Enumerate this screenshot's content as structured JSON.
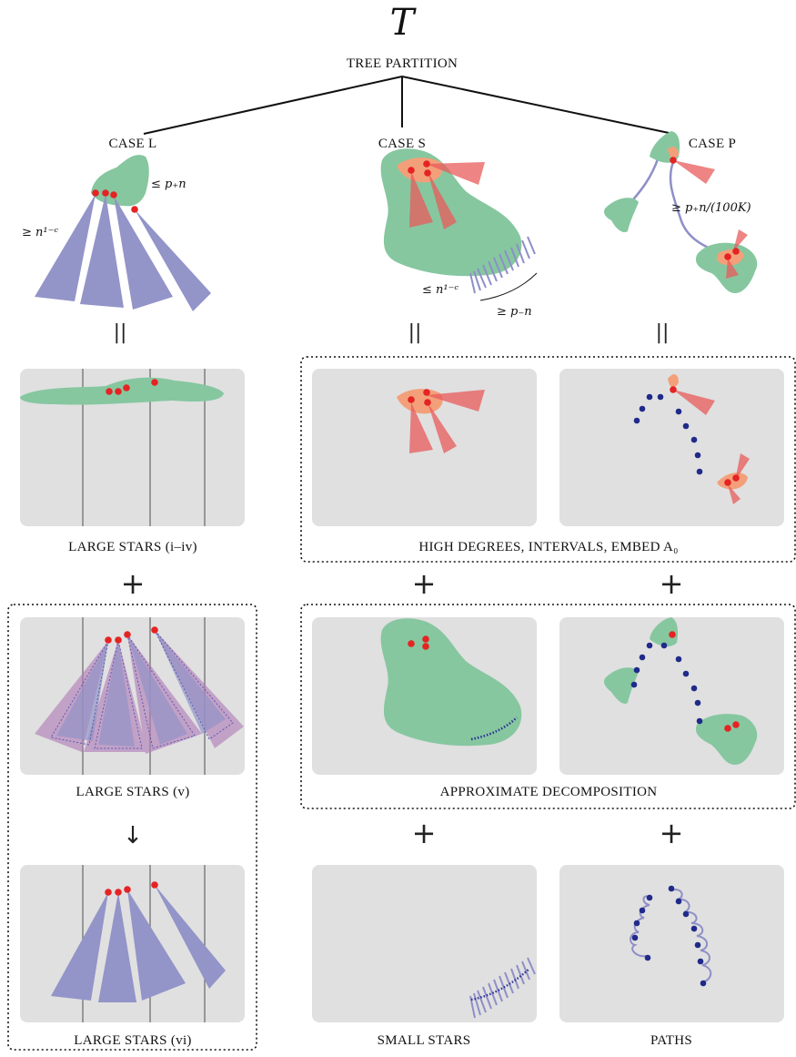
{
  "root": {
    "symbol": "T",
    "label": "TREE PARTITION"
  },
  "cases": [
    {
      "id": "L",
      "label": "CASE L",
      "annotations": [
        "≤ p₊n",
        "≥ n¹⁻ᶜ"
      ]
    },
    {
      "id": "S",
      "label": "CASE S",
      "annotations": [
        "≤ n¹⁻ᶜ",
        "≥ p₋n"
      ]
    },
    {
      "id": "P",
      "label": "CASE P",
      "annotations": [
        "≥ p₊n/(100K)"
      ]
    }
  ],
  "equals_symbol": "||",
  "plus_symbol": "+",
  "arrow_symbol": "↓",
  "panels": {
    "large_stars_i_iv": "LARGE STARS (i–iv)",
    "high_degrees": "HIGH DEGREES, INTERVALS, EMBED A₀",
    "large_stars_v": "LARGE STARS (v)",
    "approx_decomp": "APPROXIMATE DECOMPOSITION",
    "large_stars_vi": "LARGE STARS (vi)",
    "small_stars": "SMALL STARS",
    "paths": "PATHS"
  },
  "colors": {
    "panel": "#e0e0e0",
    "green": "#86c7a0",
    "salmon": "#f3a07a",
    "red_vertex": "#e52323",
    "navy_vertex": "#202a8a",
    "star_purple": "#9394c8",
    "star_violet": "#b07cb8"
  }
}
